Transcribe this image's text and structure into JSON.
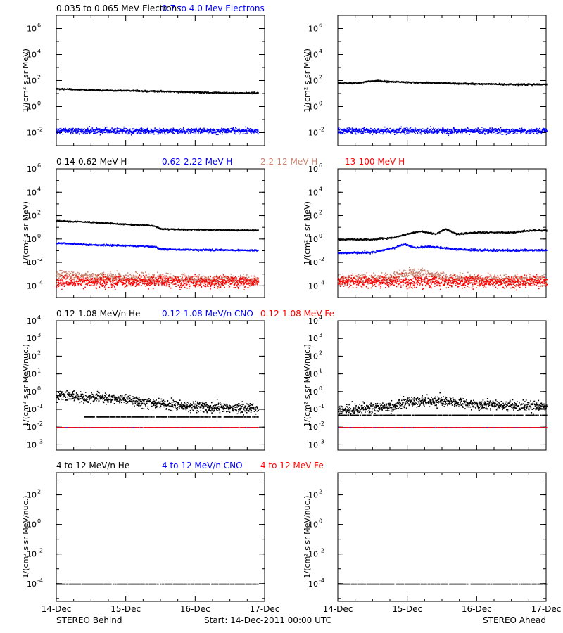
{
  "colors": {
    "black": "#000000",
    "blue": "#0000ff",
    "tan": "#c8826e",
    "red": "#ff0000"
  },
  "chart_data": {
    "type": "scatter",
    "x_ticks": [
      "14-Dec",
      "15-Dec",
      "16-Dec",
      "17-Dec"
    ],
    "bottom_labels": {
      "left": "STEREO Behind",
      "center": "Start: 14-Dec-2011 00:00 UTC",
      "right": "STEREO Ahead"
    },
    "rows": [
      {
        "legend": [
          {
            "text": "0.035 to 0.065 MeV Electrons",
            "color": "black"
          },
          {
            "text": "0.7 to 4.0 Mev Electrons",
            "color": "blue"
          }
        ],
        "ylabel": "1/(cm² s sr MeV)",
        "log": true,
        "ylim_exp": [
          -3,
          7
        ],
        "ytick_exps": [
          -2,
          0,
          2,
          4,
          6
        ],
        "panels": [
          {
            "spacecraft": "STEREO Behind",
            "series": [
              {
                "name": "0.035 to 0.065 MeV Electrons",
                "color": "black",
                "style": "band",
                "spread": 0.04,
                "x": [
                  0.0,
                  0.5,
                  1.0,
                  1.5,
                  2.0,
                  2.5,
                  2.9
                ],
                "y": [
                  25,
                  20,
                  18,
                  16,
                  14,
                  12,
                  12
                ]
              },
              {
                "name": "0.7 to 4.0 Mev Electrons",
                "color": "blue",
                "style": "scatter",
                "spread": 0.15,
                "x": [
                  0.0,
                  1.0,
                  2.0,
                  2.9
                ],
                "y": [
                  0.015,
                  0.015,
                  0.015,
                  0.015
                ]
              }
            ]
          },
          {
            "spacecraft": "STEREO Ahead",
            "series": [
              {
                "name": "0.035 to 0.065 MeV Electrons",
                "color": "black",
                "style": "band",
                "spread": 0.04,
                "x": [
                  0.0,
                  0.3,
                  0.45,
                  0.6,
                  1.0,
                  1.5,
                  2.0,
                  2.5,
                  3.0
                ],
                "y": [
                  70,
                  70,
                  100,
                  100,
                  80,
                  70,
                  60,
                  55,
                  55
                ]
              },
              {
                "name": "0.7 to 4.0 Mev Electrons",
                "color": "blue",
                "style": "scatter",
                "spread": 0.15,
                "x": [
                  0.0,
                  1.0,
                  2.0,
                  3.0
                ],
                "y": [
                  0.015,
                  0.015,
                  0.015,
                  0.015
                ]
              }
            ]
          }
        ]
      },
      {
        "legend": [
          {
            "text": "0.14-0.62 MeV H",
            "color": "black"
          },
          {
            "text": "0.62-2.22 MeV H",
            "color": "blue"
          },
          {
            "text": "2.2-12 MeV H",
            "color": "tan"
          },
          {
            "text": "13-100 MeV H",
            "color": "red"
          }
        ],
        "ylabel": "1/(cm² s sr MeV)",
        "log": true,
        "ylim_exp": [
          -5,
          6
        ],
        "ytick_exps": [
          -4,
          -2,
          0,
          2,
          4,
          6
        ],
        "panels": [
          {
            "spacecraft": "STEREO Behind",
            "series": [
              {
                "name": "0.14-0.62 MeV H",
                "color": "black",
                "style": "band",
                "spread": 0.04,
                "x": [
                  0.0,
                  0.5,
                  1.0,
                  1.4,
                  1.5,
                  2.0,
                  2.9
                ],
                "y": [
                  40,
                  30,
                  20,
                  15,
                  8,
                  7,
                  6
                ]
              },
              {
                "name": "0.62-2.22 MeV H",
                "color": "blue",
                "style": "band",
                "spread": 0.05,
                "x": [
                  0.0,
                  0.5,
                  1.0,
                  1.4,
                  1.5,
                  2.0,
                  2.9
                ],
                "y": [
                  0.5,
                  0.35,
                  0.3,
                  0.25,
                  0.15,
                  0.13,
                  0.12
                ]
              },
              {
                "name": "2.2-12 MeV H",
                "color": "tan",
                "style": "scatter",
                "spread": 0.3,
                "x": [
                  0.0,
                  0.5,
                  1.0,
                  2.0,
                  2.9
                ],
                "y": [
                  0.001,
                  0.0007,
                  0.0005,
                  0.0004,
                  0.0003
                ]
              },
              {
                "name": "13-100 MeV H",
                "color": "red",
                "style": "scatter",
                "spread": 0.35,
                "x": [
                  0.0,
                  1.5,
                  2.9
                ],
                "y": [
                  0.00025,
                  0.00025,
                  0.00025
                ]
              }
            ]
          },
          {
            "spacecraft": "STEREO Ahead",
            "series": [
              {
                "name": "0.14-0.62 MeV H",
                "color": "black",
                "style": "band",
                "spread": 0.05,
                "x": [
                  0.0,
                  0.5,
                  0.8,
                  1.0,
                  1.2,
                  1.4,
                  1.55,
                  1.7,
                  2.0,
                  2.5,
                  2.8,
                  3.0
                ],
                "y": [
                  1,
                  1,
                  1.5,
                  3,
                  5,
                  3,
                  8,
                  3,
                  4,
                  4,
                  6,
                  6
                ]
              },
              {
                "name": "0.62-2.22 MeV H",
                "color": "blue",
                "style": "band",
                "spread": 0.06,
                "x": [
                  0.0,
                  0.5,
                  0.8,
                  0.95,
                  1.1,
                  1.3,
                  1.5,
                  1.7,
                  2.0,
                  2.5,
                  3.0
                ],
                "y": [
                  0.07,
                  0.08,
                  0.2,
                  0.4,
                  0.2,
                  0.25,
                  0.2,
                  0.15,
                  0.12,
                  0.12,
                  0.12
                ]
              },
              {
                "name": "2.2-12 MeV H",
                "color": "tan",
                "style": "scatter",
                "spread": 0.3,
                "x": [
                  0.0,
                  0.7,
                  0.9,
                  1.1,
                  1.3,
                  1.6,
                  2.0,
                  3.0
                ],
                "y": [
                  0.0004,
                  0.0005,
                  0.001,
                  0.0015,
                  0.001,
                  0.0005,
                  0.0004,
                  0.0004
                ]
              },
              {
                "name": "13-100 MeV H",
                "color": "red",
                "style": "scatter",
                "spread": 0.35,
                "x": [
                  0.0,
                  1.5,
                  3.0
                ],
                "y": [
                  0.00025,
                  0.00025,
                  0.00025
                ]
              }
            ]
          }
        ]
      },
      {
        "legend": [
          {
            "text": "0.12-1.08 MeV/n He",
            "color": "black"
          },
          {
            "text": "0.12-1.08 MeV/n CNO",
            "color": "blue"
          },
          {
            "text": "0.12-1.08 MeV Fe",
            "color": "red"
          }
        ],
        "ylabel": "1/(cm² s sr MeV/nuc.)",
        "log": true,
        "ylim_exp": [
          -3.3,
          4
        ],
        "ytick_exps": [
          -3,
          -2,
          -1,
          0,
          1,
          2,
          3,
          4
        ],
        "panels": [
          {
            "spacecraft": "STEREO Behind",
            "series": [
              {
                "name": "0.12-1.08 MeV/n He",
                "color": "black",
                "style": "scatter",
                "spread": 0.2,
                "x": [
                  0.0,
                  0.5,
                  1.0,
                  1.5,
                  2.0,
                  2.9
                ],
                "y": [
                  0.7,
                  0.5,
                  0.4,
                  0.2,
                  0.15,
                  0.12
                ]
              },
              {
                "name": "0.12-1.08 MeV/n He (floor)",
                "color": "black",
                "style": "line",
                "spread": 0.0,
                "x": [
                  0.4,
                  2.9
                ],
                "y": [
                  0.04,
                  0.04
                ]
              },
              {
                "name": "0.12-1.08 MeV/n CNO",
                "color": "blue",
                "style": "line",
                "spread": 0.0,
                "x": [
                  0.0,
                  2.9
                ],
                "y": [
                  0.01,
                  0.01
                ]
              },
              {
                "name": "0.12-1.08 MeV Fe",
                "color": "red",
                "style": "line",
                "spread": 0.0,
                "x": [
                  0.0,
                  2.9
                ],
                "y": [
                  0.01,
                  0.01
                ]
              }
            ]
          },
          {
            "spacecraft": "STEREO Ahead",
            "series": [
              {
                "name": "0.12-1.08 MeV/n He",
                "color": "black",
                "style": "scatter",
                "spread": 0.2,
                "x": [
                  0.0,
                  0.8,
                  1.0,
                  1.5,
                  2.0,
                  3.0
                ],
                "y": [
                  0.1,
                  0.15,
                  0.3,
                  0.3,
                  0.2,
                  0.15
                ]
              },
              {
                "name": "0.12-1.08 MeV/n He (floor)",
                "color": "black",
                "style": "line",
                "spread": 0.0,
                "x": [
                  0.0,
                  3.0
                ],
                "y": [
                  0.05,
                  0.05
                ]
              },
              {
                "name": "0.12-1.08 MeV/n CNO",
                "color": "blue",
                "style": "line",
                "spread": 0.0,
                "x": [
                  0.0,
                  3.0
                ],
                "y": [
                  0.01,
                  0.01
                ]
              },
              {
                "name": "0.12-1.08 MeV Fe",
                "color": "red",
                "style": "line",
                "spread": 0.0,
                "x": [
                  0.0,
                  3.0
                ],
                "y": [
                  0.01,
                  0.01
                ]
              }
            ]
          }
        ]
      },
      {
        "legend": [
          {
            "text": "4 to 12 MeV/n He",
            "color": "black"
          },
          {
            "text": "4 to 12 MeV/n CNO",
            "color": "blue"
          },
          {
            "text": "4 to 12 MeV Fe",
            "color": "red"
          }
        ],
        "ylabel": "1/(cm² s sr MeV/nuc.)",
        "log": true,
        "ylim_exp": [
          -5.2,
          3.5
        ],
        "ytick_exps": [
          -4,
          -2,
          0,
          2
        ],
        "panels": [
          {
            "spacecraft": "STEREO Behind",
            "series": [
              {
                "name": "4 to 12 MeV/n He",
                "color": "black",
                "style": "line",
                "spread": 0.0,
                "x": [
                  0.0,
                  2.9
                ],
                "y": [
                  0.0001,
                  0.0001
                ]
              }
            ]
          },
          {
            "spacecraft": "STEREO Ahead",
            "series": [
              {
                "name": "4 to 12 MeV/n He",
                "color": "black",
                "style": "line",
                "spread": 0.0,
                "x": [
                  0.0,
                  3.0
                ],
                "y": [
                  0.0001,
                  0.0001
                ]
              }
            ]
          }
        ]
      }
    ]
  }
}
